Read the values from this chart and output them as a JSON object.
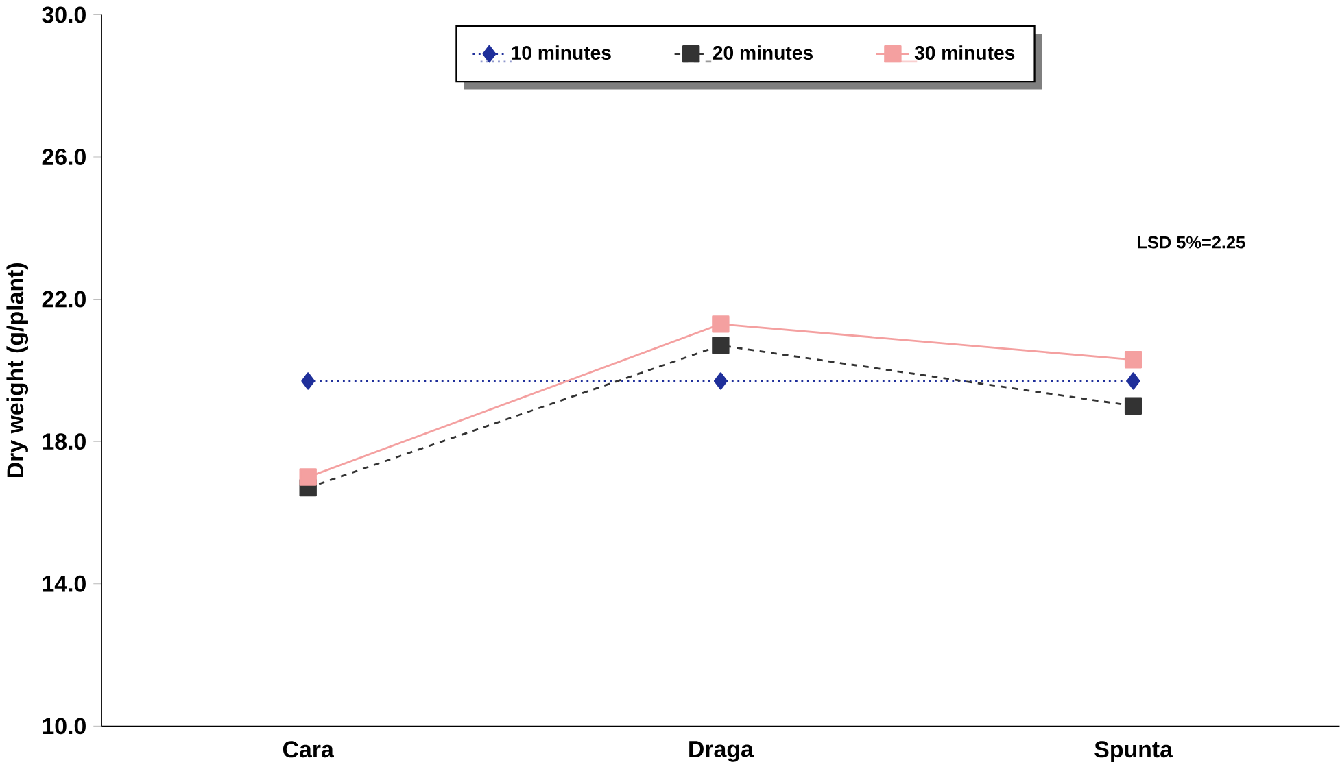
{
  "chart_data": {
    "type": "line",
    "ylabel": "Dry weight (g/plant)",
    "categories": [
      "Cara",
      "Draga",
      "Spunta"
    ],
    "series": [
      {
        "name": "10 minutes",
        "color": "#1f2f9a",
        "values": [
          19.7,
          19.7,
          19.7
        ],
        "marker": "diamond",
        "line_style": "dotted"
      },
      {
        "name": "20 minutes",
        "color": "#333333",
        "values": [
          16.7,
          20.7,
          19.0
        ],
        "marker": "square",
        "line_style": "dashed"
      },
      {
        "name": "30 minutes",
        "color": "#f4a0a0",
        "values": [
          17.0,
          21.3,
          20.3
        ],
        "marker": "square",
        "line_style": "solid"
      }
    ],
    "ylim": [
      10,
      30
    ],
    "yticks": [
      {
        "value": 10,
        "label": "10.0"
      },
      {
        "value": 14,
        "label": "14.0"
      },
      {
        "value": 18,
        "label": "18.0"
      },
      {
        "value": 22,
        "label": "22.0"
      },
      {
        "value": 26,
        "label": "26.0"
      },
      {
        "value": 30,
        "label": "30.0"
      }
    ],
    "grid": false,
    "legend": "top",
    "annotations": [
      "LSD 5%=2.25"
    ]
  }
}
